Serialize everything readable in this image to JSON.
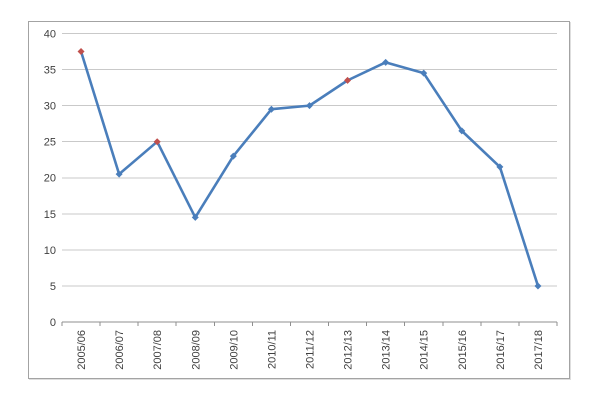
{
  "chart_data": {
    "type": "line",
    "title": "",
    "xlabel": "",
    "ylabel": "",
    "legend": "none",
    "grid": true,
    "categories": [
      "2005/06",
      "2006/07",
      "2007/08",
      "2008/09",
      "2009/10",
      "2010/11",
      "2011/12",
      "2012/13",
      "2013/14",
      "2014/15",
      "2015/16",
      "2016/17",
      "2017/18"
    ],
    "series": [
      {
        "name": "series-1",
        "values": [
          37.5,
          20.5,
          25,
          14.5,
          23,
          29.5,
          30,
          33.5,
          36,
          34.5,
          26.5,
          21.5,
          5
        ]
      }
    ],
    "marker_colors": [
      "#c0504d",
      "#4a7ebb",
      "#c0504d",
      "#4a7ebb",
      "#4a7ebb",
      "#4a7ebb",
      "#4a7ebb",
      "#c0504d",
      "#4a7ebb",
      "#4a7ebb",
      "#4a7ebb",
      "#4a7ebb",
      "#4a7ebb"
    ],
    "y_ticks": [
      0,
      5,
      10,
      15,
      20,
      25,
      30,
      35,
      40
    ],
    "ylim": [
      0,
      40
    ],
    "colors": {
      "line": "#4a7ebb",
      "highlight_marker": "#c0504d",
      "gridline": "#c9c9c9",
      "axis": "#8f8f8f",
      "tick_label": "#3f3f3f",
      "frame_border": "#a3a3a3",
      "background": "#ffffff"
    }
  }
}
